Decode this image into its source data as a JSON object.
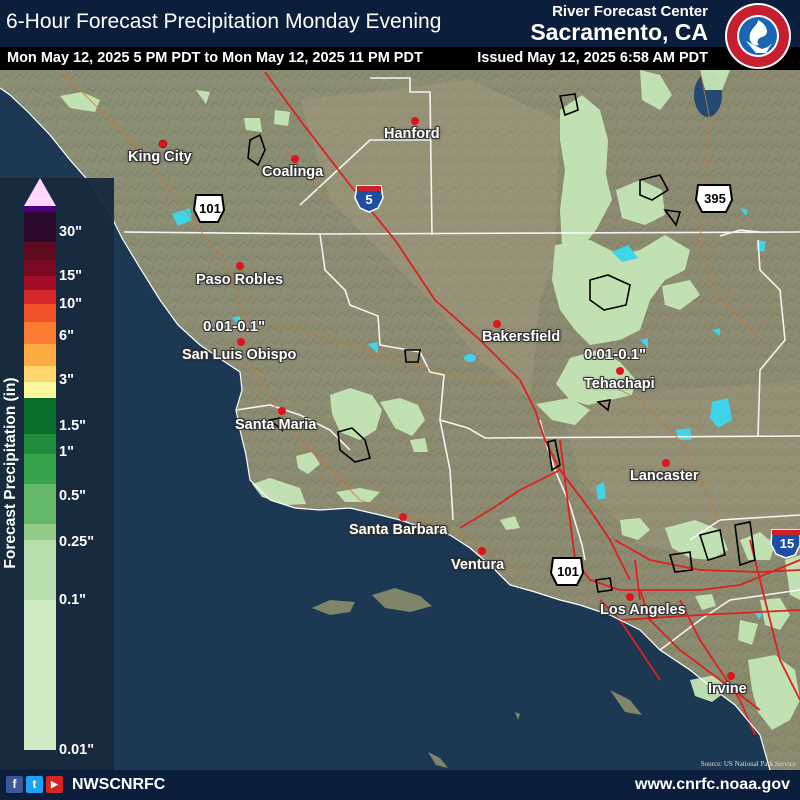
{
  "header": {
    "title": "6-Hour Forecast Precipitation Monday Evening",
    "valid_period": "Mon May 12, 2025 5 PM PDT to Mon May 12, 2025 11 PM PDT",
    "issued": "Issued May 12, 2025 6:58 AM PDT",
    "office_label": "River Forecast Center",
    "office_location": "Sacramento, CA",
    "logo_text": "NATIONAL WEATHER SERVICE"
  },
  "legend": {
    "title": "Forecast Precipitation (in)",
    "labels": [
      "30\"",
      "15\"",
      "10\"",
      "6\"",
      "3\"",
      "1.5\"",
      "1\"",
      "0.5\"",
      "0.25\"",
      "0.1\"",
      "0.01\""
    ],
    "colors": [
      "#ffd6ff",
      "#4b0082",
      "#2b0a2e",
      "#5e0b1f",
      "#7a0a22",
      "#a40d26",
      "#d5282a",
      "#f0502a",
      "#fb7c32",
      "#fdaa42",
      "#fdd46e",
      "#f9f79a",
      "#0a6e2a",
      "#1f8c3a",
      "#37a34b",
      "#62b866",
      "#91cb87",
      "#b8dfab",
      "#cdeac2"
    ]
  },
  "cities": [
    {
      "name": "King City"
    },
    {
      "name": "Hanford"
    },
    {
      "name": "Coalinga"
    },
    {
      "name": "Paso Robles"
    },
    {
      "name": "San Luis Obispo"
    },
    {
      "name": "Bakersfield"
    },
    {
      "name": "Tehachapi"
    },
    {
      "name": "Santa Maria"
    },
    {
      "name": "Lancaster"
    },
    {
      "name": "Santa Barbara"
    },
    {
      "name": "Ventura"
    },
    {
      "name": "Los Angeles"
    },
    {
      "name": "Irvine"
    }
  ],
  "forecast_labels": [
    "0.01-0.1\"",
    "0.01-0.1\""
  ],
  "highways": {
    "us101_a": "101",
    "i5": "5",
    "us395": "395",
    "us101_b": "101",
    "i15": "15"
  },
  "footer": {
    "social_handle": "NWSCNRFC",
    "website": "www.cnrfc.noaa.gov",
    "credit": "Source: US National Park Service"
  },
  "icons": [
    "facebook-icon",
    "twitter-icon",
    "youtube-icon",
    "noaa-nws-logo"
  ]
}
